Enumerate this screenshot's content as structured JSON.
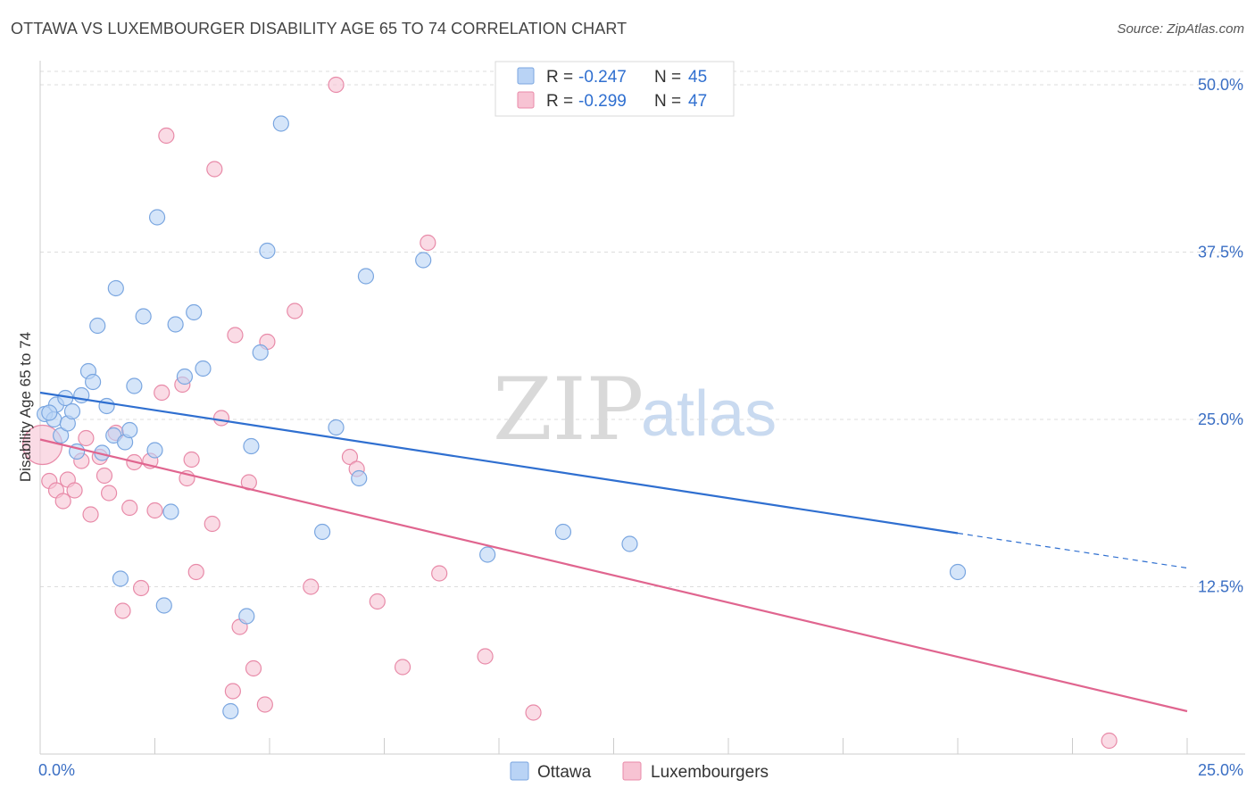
{
  "header": {
    "title": "OTTAWA VS LUXEMBOURGER DISABILITY AGE 65 TO 74 CORRELATION CHART",
    "source": "Source: ZipAtlas.com"
  },
  "watermark": {
    "zip": "ZIP",
    "atlas": "atlas"
  },
  "legend": {
    "rows": [
      {
        "r_label": "R = ",
        "r_value": "-0.247",
        "n_label": "N = ",
        "n_value": "45"
      },
      {
        "r_label": "R = ",
        "r_value": "-0.299",
        "n_label": "N = ",
        "n_value": "47"
      }
    ]
  },
  "colors": {
    "ottawa_fill": "#b9d3f5",
    "ottawa_stroke": "#7aa6e0",
    "ottawa_line": "#2f6fd0",
    "lux_fill": "#f7c3d3",
    "lux_stroke": "#e88aa8",
    "lux_line": "#e0658f",
    "grid": "#dddddd",
    "tick_label": "#3b6fc4"
  },
  "chart_data": {
    "type": "scatter",
    "title": "OTTAWA VS LUXEMBOURGER DISABILITY AGE 65 TO 74 CORRELATION CHART",
    "xlabel": "",
    "ylabel": "Disability Age 65 to 74",
    "xlim": [
      0,
      25
    ],
    "ylim": [
      0,
      51
    ],
    "x_tick_labels": [
      "0.0%",
      "25.0%"
    ],
    "y_ticks": [
      12.5,
      25.0,
      37.5,
      50.0
    ],
    "y_tick_labels": [
      "12.5%",
      "25.0%",
      "37.5%",
      "50.0%"
    ],
    "grid": true,
    "legend_placement": "top-center",
    "series": [
      {
        "name": "Ottawa",
        "points": [
          [
            0.1,
            25.4
          ],
          [
            0.3,
            25.0
          ],
          [
            0.35,
            26.1
          ],
          [
            0.45,
            23.8
          ],
          [
            0.55,
            26.6
          ],
          [
            0.6,
            24.7
          ],
          [
            0.7,
            25.6
          ],
          [
            0.8,
            22.6
          ],
          [
            0.9,
            26.8
          ],
          [
            1.05,
            28.6
          ],
          [
            1.15,
            27.8
          ],
          [
            1.25,
            32.0
          ],
          [
            1.35,
            22.5
          ],
          [
            1.45,
            26.0
          ],
          [
            1.6,
            23.8
          ],
          [
            1.65,
            34.8
          ],
          [
            1.75,
            13.1
          ],
          [
            1.85,
            23.3
          ],
          [
            1.95,
            24.2
          ],
          [
            2.05,
            27.5
          ],
          [
            2.25,
            32.7
          ],
          [
            2.5,
            22.7
          ],
          [
            2.55,
            40.1
          ],
          [
            2.7,
            11.1
          ],
          [
            2.85,
            18.1
          ],
          [
            2.95,
            32.1
          ],
          [
            3.15,
            28.2
          ],
          [
            3.35,
            33.0
          ],
          [
            3.55,
            28.8
          ],
          [
            4.15,
            3.2
          ],
          [
            4.5,
            10.3
          ],
          [
            4.6,
            23.0
          ],
          [
            4.8,
            30.0
          ],
          [
            4.95,
            37.6
          ],
          [
            5.25,
            47.1
          ],
          [
            6.15,
            16.6
          ],
          [
            6.45,
            24.4
          ],
          [
            6.95,
            20.6
          ],
          [
            7.1,
            35.7
          ],
          [
            8.35,
            36.9
          ],
          [
            9.75,
            14.9
          ],
          [
            11.4,
            16.6
          ],
          [
            12.85,
            15.7
          ],
          [
            20.0,
            13.6
          ],
          [
            0.2,
            25.5
          ]
        ],
        "trendline": {
          "x": [
            0,
            20.0
          ],
          "y": [
            27.0,
            16.5
          ],
          "dashed_extension": {
            "x": [
              20.0,
              25.0
            ],
            "y": [
              16.5,
              13.9
            ]
          }
        }
      },
      {
        "name": "Luxembourgers",
        "points": [
          [
            0.05,
            23.1
          ],
          [
            0.2,
            20.4
          ],
          [
            0.35,
            19.7
          ],
          [
            0.5,
            18.9
          ],
          [
            0.6,
            20.5
          ],
          [
            0.75,
            19.7
          ],
          [
            0.9,
            21.9
          ],
          [
            1.0,
            23.6
          ],
          [
            1.1,
            17.9
          ],
          [
            1.3,
            22.2
          ],
          [
            1.4,
            20.8
          ],
          [
            1.5,
            19.5
          ],
          [
            1.65,
            24.0
          ],
          [
            1.8,
            10.7
          ],
          [
            1.95,
            18.4
          ],
          [
            2.05,
            21.8
          ],
          [
            2.2,
            12.4
          ],
          [
            2.4,
            21.9
          ],
          [
            2.5,
            18.2
          ],
          [
            2.65,
            27.0
          ],
          [
            2.75,
            46.2
          ],
          [
            3.1,
            27.6
          ],
          [
            3.2,
            20.6
          ],
          [
            3.3,
            22.0
          ],
          [
            3.4,
            13.6
          ],
          [
            3.75,
            17.2
          ],
          [
            3.8,
            43.7
          ],
          [
            3.95,
            25.1
          ],
          [
            4.2,
            4.7
          ],
          [
            4.25,
            31.3
          ],
          [
            4.35,
            9.5
          ],
          [
            4.55,
            20.3
          ],
          [
            4.65,
            6.4
          ],
          [
            4.9,
            3.7
          ],
          [
            4.95,
            30.8
          ],
          [
            5.55,
            33.1
          ],
          [
            5.9,
            12.5
          ],
          [
            6.45,
            50.0
          ],
          [
            6.75,
            22.2
          ],
          [
            6.9,
            21.3
          ],
          [
            7.35,
            11.4
          ],
          [
            7.9,
            6.5
          ],
          [
            8.45,
            38.2
          ],
          [
            8.7,
            13.5
          ],
          [
            9.7,
            7.3
          ],
          [
            10.75,
            3.1
          ],
          [
            23.3,
            1.0
          ]
        ],
        "trendline": {
          "x": [
            0,
            25.0
          ],
          "y": [
            23.5,
            3.2
          ]
        }
      }
    ]
  }
}
